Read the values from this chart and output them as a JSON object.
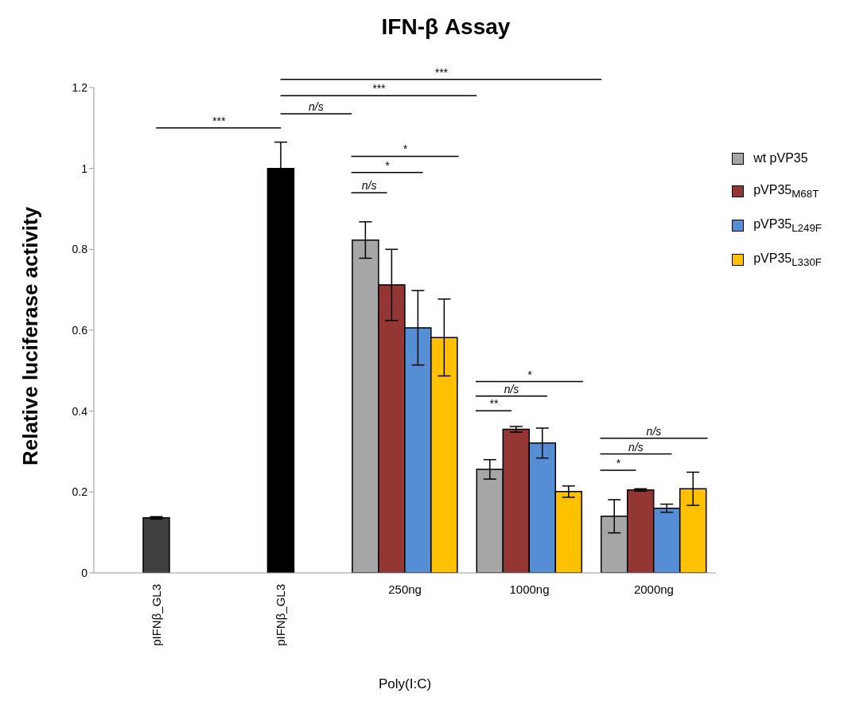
{
  "chart_data": {
    "type": "bar",
    "title": "IFN-β Assay",
    "xlabel": "Poly(I:C)",
    "ylabel": "Relative luciferase activity",
    "categories": [
      "pIFNβ_GL3",
      "pIFNβ_GL3",
      "250ng",
      "1000ng",
      "2000ng"
    ],
    "series": [
      {
        "colors": [
          "#404040",
          "#000000",
          "#404040",
          "#404040",
          "#404040"
        ],
        "color": "#404040",
        "values": [
          0.136,
          1.0,
          null,
          null,
          null
        ],
        "errors": [
          0.003,
          0.065,
          null,
          null,
          null
        ]
      },
      {
        "name": "wt pVP35",
        "color": "#a6a6a6",
        "values": [
          null,
          null,
          0.823,
          0.256,
          0.14
        ],
        "errors": [
          null,
          null,
          0.045,
          0.024,
          0.041
        ]
      },
      {
        "name": "pVP35$_{M68T}$",
        "color": "#943634",
        "values": [
          null,
          null,
          0.712,
          0.355,
          0.205
        ],
        "errors": [
          null,
          null,
          0.088,
          0.007,
          0.003
        ]
      },
      {
        "name": "pVP35$_{L249F}$",
        "color": "#558ed5",
        "values": [
          null,
          null,
          0.606,
          0.321,
          0.16
        ],
        "errors": [
          null,
          null,
          0.092,
          0.037,
          0.01
        ]
      },
      {
        "name": "pVP35$_{L330F}$",
        "color": "#ffc000",
        "values": [
          null,
          null,
          0.582,
          0.201,
          0.208
        ],
        "errors": [
          null,
          null,
          0.095,
          0.014,
          0.041
        ]
      }
    ],
    "ylim": [
      0,
      1.2
    ],
    "yticks": [
      0,
      0.2,
      0.4,
      0.6,
      0.8,
      1,
      1.2
    ],
    "legend": "right",
    "annotations": [
      "***",
      "***",
      "n/s",
      "***",
      "*",
      "*",
      "n/s",
      "*",
      "n/s",
      "**",
      "n/s",
      "n/s",
      "*"
    ]
  }
}
